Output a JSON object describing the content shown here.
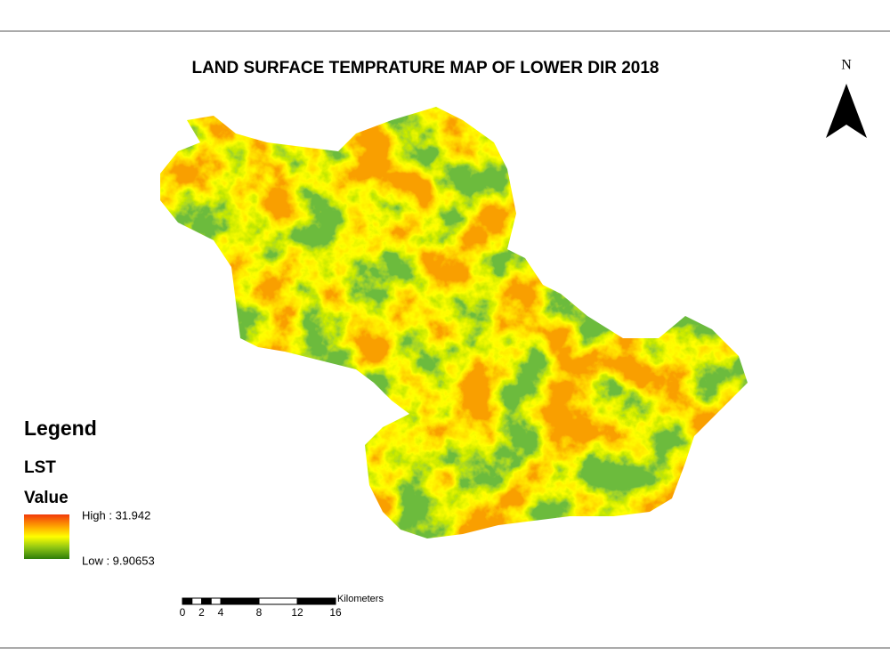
{
  "title": "LAND SURFACE TEMPRATURE MAP OF LOWER DIR 2018",
  "north_arrow": {
    "label": "N"
  },
  "legend": {
    "title": "Legend",
    "layer": "LST",
    "field": "Value",
    "high": "High : 31.942",
    "low": "Low : 9.90653"
  },
  "scale_bar": {
    "ticks": [
      0,
      2,
      4,
      8,
      12,
      16
    ],
    "unit": "Kilometers"
  }
}
